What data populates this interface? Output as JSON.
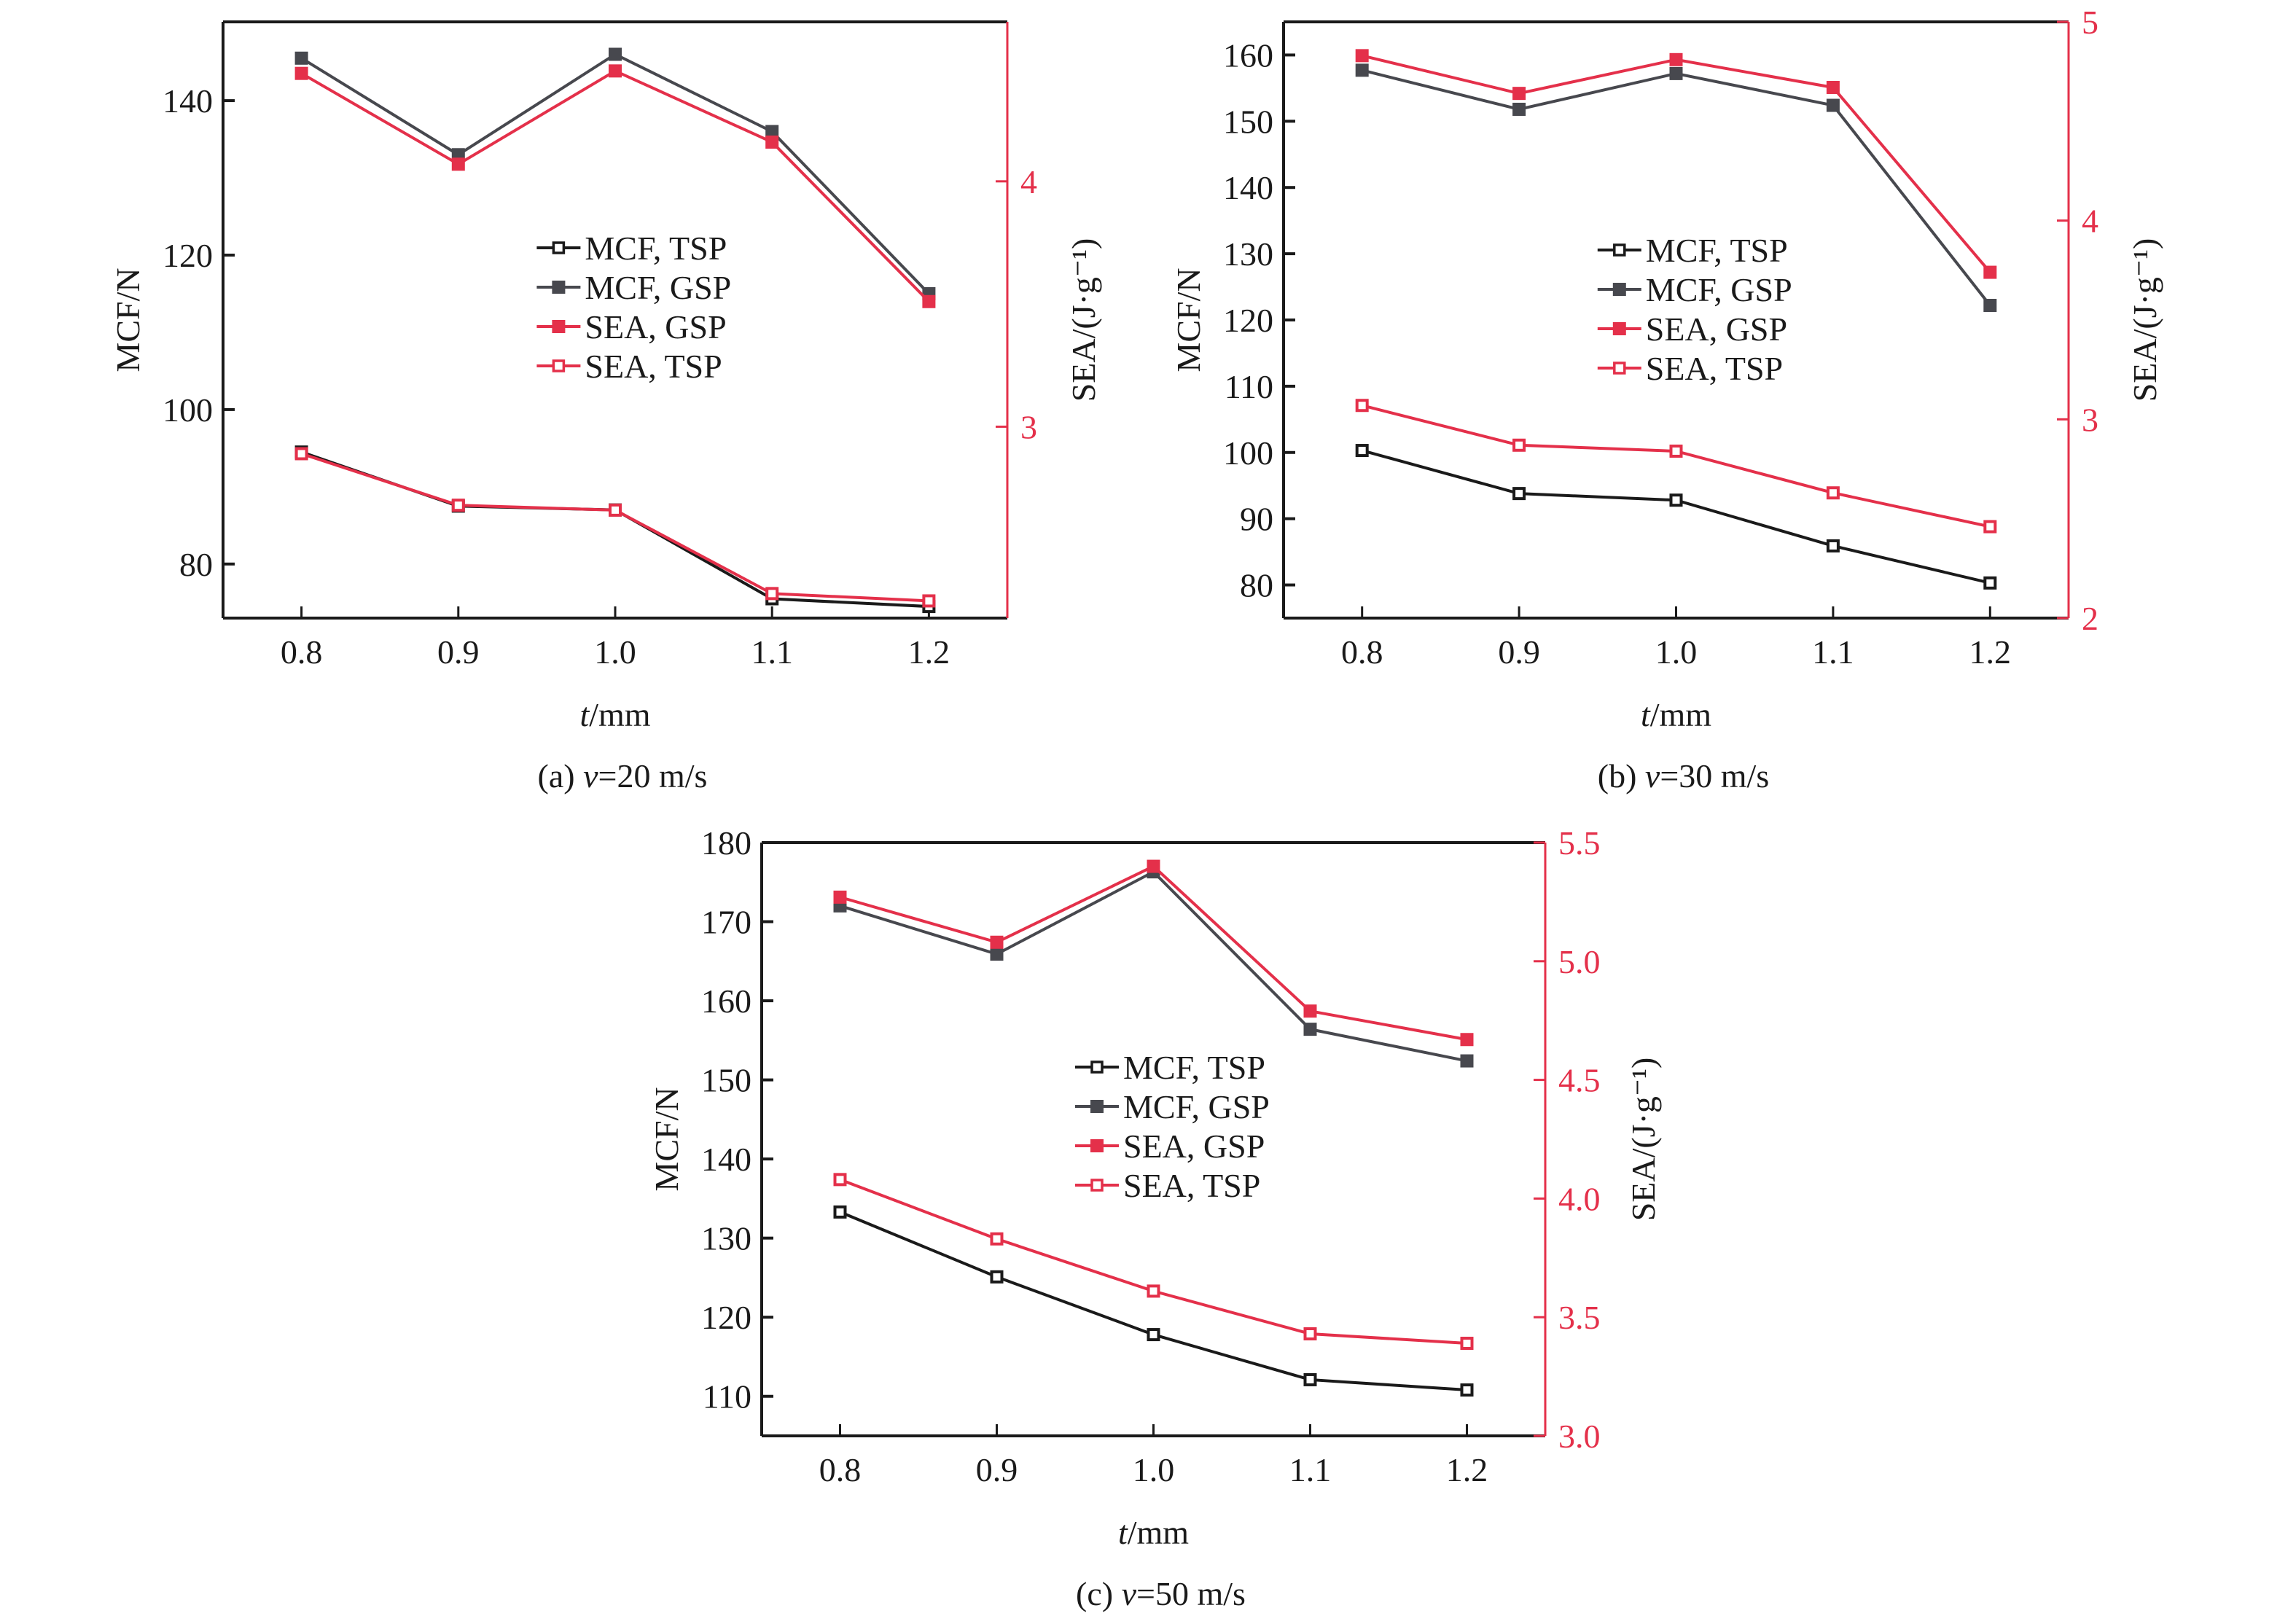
{
  "colors": {
    "black": "#1a1a1a",
    "gray": "#47484e",
    "red": "#e4304a"
  },
  "legend_labels": [
    "MCF, TSP",
    "MCF, GSP",
    "SEA, GSP",
    "SEA, TSP"
  ],
  "chart_data": [
    {
      "type": "line",
      "title": "(a) v=20 m/s",
      "caption_prefix": "(a) ",
      "caption_var": "v",
      "caption_rest": "=20 m/s",
      "xlabel_var": "t",
      "xlabel_rest": "/mm",
      "ylabel": "MCF/N",
      "y2label": "SEA/(J·g⁻¹)",
      "x": [
        0.8,
        0.9,
        1.0,
        1.1,
        1.2
      ],
      "xticks": [
        "0.8",
        "0.9",
        "1.0",
        "1.1",
        "1.2"
      ],
      "xlim": [
        0.75,
        1.25
      ],
      "ylim": [
        73,
        150.2
      ],
      "yticks": [
        80,
        100,
        120,
        140
      ],
      "y2lim": [
        2.22,
        4.65
      ],
      "y2ticks": [
        3,
        4
      ],
      "legend_position": "center",
      "series": [
        {
          "name": "MCF, TSP",
          "axis": "left",
          "marker": "open",
          "color": "black",
          "values": [
            94.5,
            87.5,
            87.0,
            75.5,
            74.5
          ]
        },
        {
          "name": "MCF, GSP",
          "axis": "left",
          "marker": "filled",
          "color": "gray",
          "values": [
            145.5,
            133.0,
            146.0,
            136.0,
            115.0
          ]
        },
        {
          "name": "SEA, GSP",
          "axis": "right",
          "marker": "filled",
          "color": "red",
          "values": [
            4.44,
            4.07,
            4.45,
            4.16,
            3.51
          ]
        },
        {
          "name": "SEA, TSP",
          "axis": "right",
          "marker": "open",
          "color": "red",
          "values": [
            2.89,
            2.68,
            2.66,
            2.32,
            2.29
          ]
        }
      ]
    },
    {
      "type": "line",
      "title": "(b) v=30 m/s",
      "caption_prefix": "(b) ",
      "caption_var": "v",
      "caption_rest": "=30 m/s",
      "xlabel_var": "t",
      "xlabel_rest": "/mm",
      "ylabel": "MCF/N",
      "y2label": "SEA/(J·g⁻¹)",
      "x": [
        0.8,
        0.9,
        1.0,
        1.1,
        1.2
      ],
      "xticks": [
        "0.8",
        "0.9",
        "1.0",
        "1.1",
        "1.2"
      ],
      "xlim": [
        0.75,
        1.25
      ],
      "ylim": [
        75,
        165
      ],
      "yticks": [
        80,
        90,
        100,
        110,
        120,
        130,
        140,
        150,
        160
      ],
      "y2lim": [
        2,
        5
      ],
      "y2ticks": [
        2,
        3,
        4,
        5
      ],
      "legend_position": "center",
      "series": [
        {
          "name": "MCF, TSP",
          "axis": "left",
          "marker": "open",
          "color": "black",
          "values": [
            100.3,
            93.8,
            92.8,
            85.9,
            80.3
          ]
        },
        {
          "name": "MCF, GSP",
          "axis": "left",
          "marker": "filled",
          "color": "gray",
          "values": [
            157.7,
            151.8,
            157.2,
            152.4,
            122.2
          ]
        },
        {
          "name": "SEA, GSP",
          "axis": "right",
          "marker": "filled",
          "color": "red",
          "values": [
            4.83,
            4.64,
            4.81,
            4.67,
            3.74
          ]
        },
        {
          "name": "SEA, TSP",
          "axis": "right",
          "marker": "open",
          "color": "red",
          "values": [
            3.07,
            2.87,
            2.84,
            2.63,
            2.46
          ]
        }
      ]
    },
    {
      "type": "line",
      "title": "(c) v=50 m/s",
      "caption_prefix": "(c) ",
      "caption_var": "v",
      "caption_rest": "=50 m/s",
      "xlabel_var": "t",
      "xlabel_rest": "/mm",
      "ylabel": "MCF/N",
      "y2label": "SEA/(J·g⁻¹)",
      "x": [
        0.8,
        0.9,
        1.0,
        1.1,
        1.2
      ],
      "xticks": [
        "0.8",
        "0.9",
        "1.0",
        "1.1",
        "1.2"
      ],
      "xlim": [
        0.75,
        1.25
      ],
      "ylim": [
        105,
        180
      ],
      "yticks": [
        110,
        120,
        130,
        140,
        150,
        160,
        170,
        180
      ],
      "y2lim": [
        3.0,
        5.5
      ],
      "y2ticks": [
        "3.0",
        "3.5",
        "4.0",
        "4.5",
        "5.0",
        "5.5"
      ],
      "legend_position": "center",
      "series": [
        {
          "name": "MCF, TSP",
          "axis": "left",
          "marker": "open",
          "color": "black",
          "values": [
            133.3,
            125.1,
            117.8,
            112.1,
            110.8
          ]
        },
        {
          "name": "MCF, GSP",
          "axis": "left",
          "marker": "filled",
          "color": "gray",
          "values": [
            172.0,
            165.9,
            176.3,
            156.4,
            152.4
          ]
        },
        {
          "name": "SEA, GSP",
          "axis": "right",
          "marker": "filled",
          "color": "red",
          "values": [
            5.27,
            5.08,
            5.4,
            4.79,
            4.67
          ]
        },
        {
          "name": "SEA, TSP",
          "axis": "right",
          "marker": "open",
          "color": "red",
          "values": [
            4.08,
            3.83,
            3.61,
            3.43,
            3.39
          ]
        }
      ]
    }
  ]
}
